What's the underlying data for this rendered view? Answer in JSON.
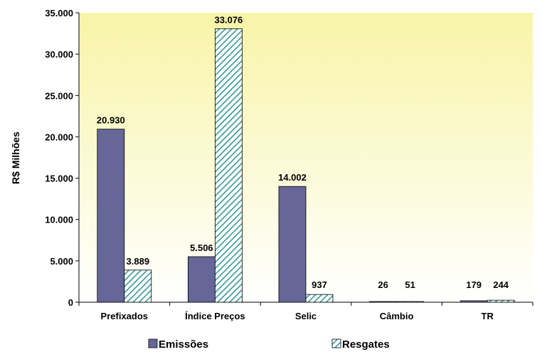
{
  "chart_data": {
    "type": "bar",
    "ylabel": "R$ Milhões",
    "ylim": [
      0,
      35000
    ],
    "yticks": [
      "0",
      "5.000",
      "10.000",
      "15.000",
      "20.000",
      "25.000",
      "30.000",
      "35.000"
    ],
    "ytick_values": [
      0,
      5000,
      10000,
      15000,
      20000,
      25000,
      30000,
      35000
    ],
    "categories": [
      "Prefixados",
      "Índice Preços",
      "Selic",
      "Câmbio",
      "TR"
    ],
    "series": [
      {
        "name": "Emissões",
        "values": [
          20930,
          5506,
          14002,
          26,
          179
        ],
        "labels": [
          "20.930",
          "5.506",
          "14.002",
          "26",
          "179"
        ],
        "color": "#666699"
      },
      {
        "name": "Resgates",
        "values": [
          3889,
          33076,
          937,
          51,
          244
        ],
        "labels": [
          "3.889",
          "33.076",
          "937",
          "51",
          "244"
        ],
        "color": "#339999"
      }
    ],
    "background_gradient": [
      "#f8f4a8",
      "#ffffff"
    ],
    "legend_position": "bottom",
    "grid": false
  }
}
